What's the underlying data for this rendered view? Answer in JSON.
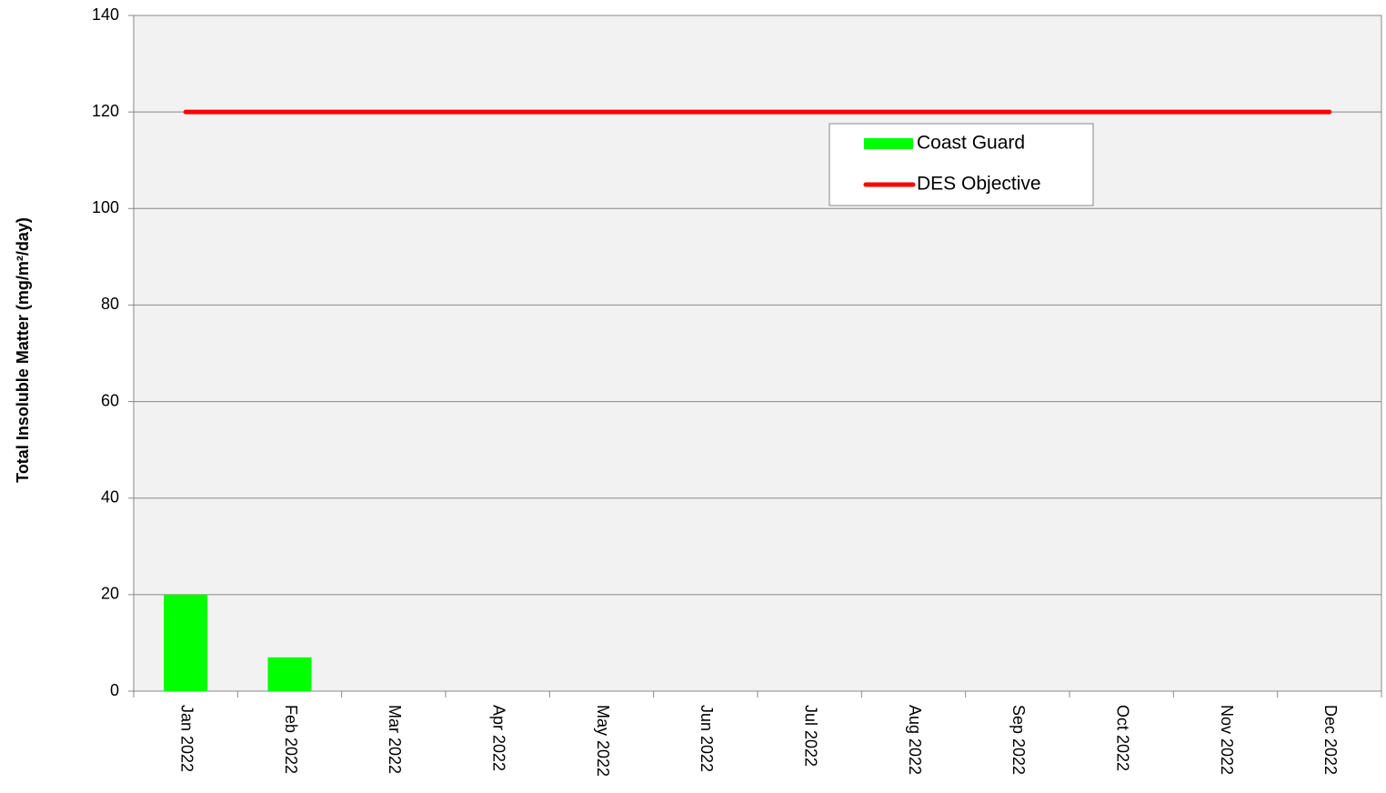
{
  "chart_data": {
    "type": "bar",
    "y_label": "Total Insoluble Matter (mg/m²/day)",
    "categories": [
      "Jan 2022",
      "Feb 2022",
      "Mar 2022",
      "Apr 2022",
      "May 2022",
      "Jun 2022",
      "Jul 2022",
      "Aug 2022",
      "Sep 2022",
      "Oct 2022",
      "Nov 2022",
      "Dec 2022"
    ],
    "series": [
      {
        "name": "Coast Guard",
        "type": "bar",
        "color": "#00ff00",
        "values": [
          20,
          7,
          null,
          null,
          null,
          null,
          null,
          null,
          null,
          null,
          null,
          null
        ]
      },
      {
        "name": "DES Objective",
        "type": "line",
        "color": "#ff0000",
        "values": [
          120,
          120,
          120,
          120,
          120,
          120,
          120,
          120,
          120,
          120,
          120,
          120
        ]
      }
    ],
    "ylim": [
      0,
      140
    ],
    "yticks": [
      0,
      20,
      40,
      60,
      80,
      100,
      120,
      140
    ],
    "grid": true
  }
}
